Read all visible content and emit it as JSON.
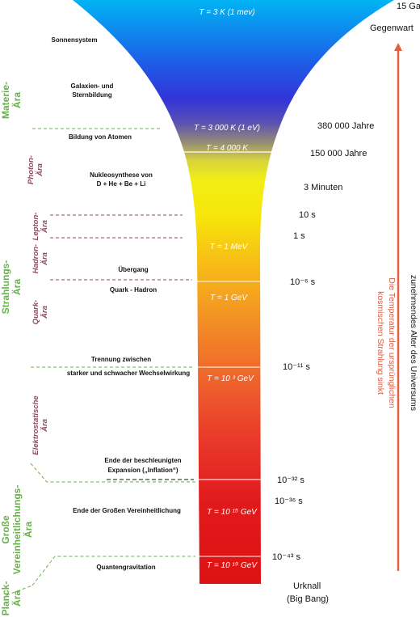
{
  "funnel": {
    "temp_labels": [
      "T = 3 K (1 mev)",
      "T = 3 000 K (1 eV)",
      "T = 4 000 K",
      "T = 1 MeV",
      "T = 1 GeV",
      "T = 10 ³ GeV",
      "T = 10 ¹⁵ GeV",
      "T = 10 ¹⁹ GeV"
    ]
  },
  "events": {
    "sonnensystem": "Sonnensystem",
    "galaxien_1": "Galaxien- und",
    "galaxien_2": "Sternbildung",
    "atome": "Bildung von Atomen",
    "nukleo_1": "Nukleosynthese von",
    "nukleo_2": "D + He + Be + Li",
    "uebergang": "Übergang",
    "quark_hadron": "Quark - Hadron",
    "trennung_1": "Trennung zwischen",
    "trennung_2": "starker und schwacher Wechselwirkung",
    "inflation_1": "Ende der beschleunigten",
    "inflation_2": "Expansion („Inflation“)",
    "vereinheitlichung": "Ende der Großen Vereinheitlichung",
    "quantengravitation": "Quantengravitation"
  },
  "times": [
    "15 Ga",
    "Gegenwart",
    "380 000 Jahre",
    "150 000 Jahre",
    "3 Minuten",
    "10 s",
    "1 s",
    "10⁻⁶ s",
    "10⁻¹¹ s",
    "10⁻³² s",
    "10⁻³⁶ s",
    "10⁻⁴³ s",
    "Urknall",
    "(Big Bang)"
  ],
  "eras": {
    "materie_1": "Materie-",
    "materie_2": "Ära",
    "photon_1": "Photon-",
    "photon_2": "Ära",
    "lepton_1": "Lepton-",
    "lepton_2": "Ära",
    "hadron_1": "Hadron-",
    "hadron_2": "Ära",
    "strahlung_1": "Strahlungs-",
    "strahlung_2": "Ära",
    "quark_1": "Quark-",
    "quark_2": "Ära",
    "elektro_1": "Elektrostatische",
    "elektro_2": "Ära",
    "grosse_1": "Große",
    "grosse_2": "Vereinheitlichungs-",
    "grosse_3": "Ära",
    "planck_1": "Planck-",
    "planck_2": "Ära"
  },
  "arrow": {
    "line1": "zunehmendes Alter des Universums",
    "line2": "Die Temperatur der ursprünglichen",
    "line3": "kosmischen Strahlung sinkt"
  },
  "colors": {
    "green": "#66b24a",
    "purple": "#8a4a62",
    "arrow": "#e06040"
  }
}
